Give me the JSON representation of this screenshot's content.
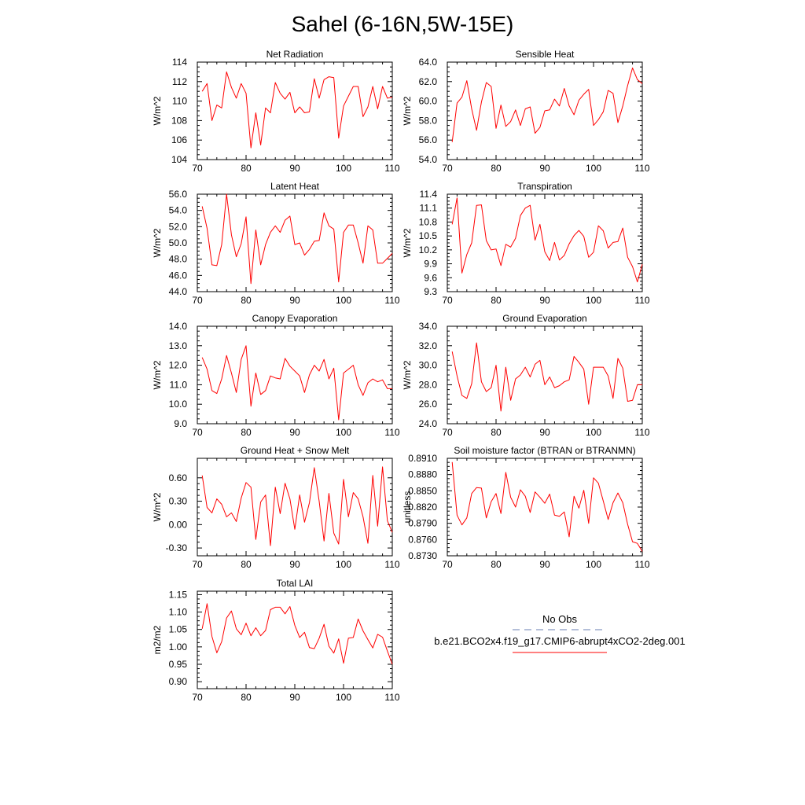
{
  "title": "Sahel (6-16N,5W-15E)",
  "colors": {
    "series": "#ff0000",
    "obs": "#6a7fb3",
    "axis": "#000000"
  },
  "x_axis": {
    "range": [
      70,
      110
    ],
    "major_ticks": [
      70,
      80,
      90,
      100,
      110
    ],
    "labels": [
      "70",
      "80",
      "90",
      "100",
      "110"
    ]
  },
  "legend": {
    "entries": [
      {
        "label": "No Obs",
        "line_color": "#6a7fb3",
        "line_style": "dashed"
      },
      {
        "label": "b.e21.BCO2x4.f19_g17.CMIP6-abrupt4xCO2-2deg.001",
        "line_color": "#ff0000",
        "line_style": "solid"
      }
    ]
  },
  "chart_data": [
    {
      "type": "line",
      "title": "Net Radiation",
      "ylabel": "W/m^2",
      "ylim": [
        104,
        114
      ],
      "yticks": [
        104,
        106,
        108,
        110,
        112,
        114
      ],
      "ytick_labels": [
        "104",
        "106",
        "108",
        "110",
        "112",
        "114"
      ],
      "x_start": 71,
      "values": [
        111.0,
        111.8,
        108.0,
        109.6,
        109.3,
        113.0,
        111.4,
        110.3,
        111.8,
        110.8,
        105.2,
        108.8,
        105.5,
        109.3,
        108.8,
        111.9,
        110.8,
        110.2,
        110.9,
        108.8,
        109.4,
        108.8,
        108.9,
        112.3,
        110.3,
        112.2,
        112.5,
        112.4,
        106.2,
        109.5,
        110.5,
        111.5,
        111.5,
        108.4,
        109.4,
        111.5,
        109.2,
        111.5,
        110.3,
        110.4
      ]
    },
    {
      "type": "line",
      "title": "Sensible Heat",
      "ylabel": "W/m^2",
      "ylim": [
        54,
        64
      ],
      "yticks": [
        54,
        56,
        58,
        60,
        62,
        64
      ],
      "ytick_labels": [
        "54.0",
        "56.0",
        "58.0",
        "60.0",
        "62.0",
        "64.0"
      ],
      "x_start": 71,
      "values": [
        55.8,
        59.8,
        60.4,
        62.1,
        59.2,
        57.0,
        59.9,
        61.9,
        61.5,
        57.2,
        59.6,
        57.4,
        57.9,
        59.1,
        57.5,
        59.2,
        59.4,
        56.7,
        57.3,
        59.0,
        59.1,
        60.2,
        59.5,
        61.3,
        59.5,
        58.6,
        60.1,
        60.7,
        61.2,
        57.5,
        58.1,
        58.9,
        61.1,
        60.8,
        57.8,
        59.5,
        61.6,
        63.4,
        62.2,
        61.8
      ]
    },
    {
      "type": "line",
      "title": "Latent Heat",
      "ylabel": "W/m^2",
      "ylim": [
        44,
        56
      ],
      "yticks": [
        44,
        46,
        48,
        50,
        52,
        54,
        56
      ],
      "ytick_labels": [
        "44.0",
        "46.0",
        "48.0",
        "50.0",
        "52.0",
        "54.0",
        "56.0"
      ],
      "x_start": 71,
      "values": [
        54.5,
        51.8,
        47.3,
        47.2,
        49.8,
        56.0,
        51.0,
        48.3,
        49.9,
        53.2,
        45.0,
        51.6,
        47.3,
        49.8,
        51.3,
        52.1,
        51.3,
        52.8,
        53.3,
        49.8,
        50.0,
        48.5,
        49.2,
        50.2,
        50.3,
        53.7,
        52.1,
        51.7,
        45.2,
        51.3,
        52.2,
        52.2,
        50.0,
        47.5,
        52.1,
        51.6,
        47.5,
        47.5,
        48.1,
        48.7
      ]
    },
    {
      "type": "line",
      "title": "Transpiration",
      "ylabel": "W/m^2",
      "ylim": [
        9.3,
        11.4
      ],
      "yticks": [
        9.3,
        9.6,
        9.9,
        10.2,
        10.5,
        10.8,
        11.1,
        11.4
      ],
      "ytick_labels": [
        "9.3",
        "9.6",
        "9.9",
        "10.2",
        "10.5",
        "10.8",
        "11.1",
        "11.4"
      ],
      "x_start": 71,
      "values": [
        10.75,
        11.32,
        9.7,
        10.1,
        10.35,
        11.16,
        11.17,
        10.4,
        10.2,
        10.22,
        9.86,
        10.32,
        10.26,
        10.45,
        10.94,
        11.1,
        11.16,
        10.41,
        10.75,
        10.16,
        9.97,
        10.36,
        9.98,
        10.08,
        10.33,
        10.51,
        10.62,
        10.49,
        10.04,
        10.15,
        10.72,
        10.61,
        10.24,
        10.36,
        10.38,
        10.67,
        10.04,
        9.84,
        9.51,
        9.89
      ]
    },
    {
      "type": "line",
      "title": "Canopy Evaporation",
      "ylabel": "W/m^2",
      "ylim": [
        9,
        14
      ],
      "yticks": [
        9,
        10,
        11,
        12,
        13,
        14
      ],
      "ytick_labels": [
        "9.0",
        "10.0",
        "11.0",
        "12.0",
        "13.0",
        "14.0"
      ],
      "x_start": 71,
      "values": [
        12.4,
        11.8,
        10.7,
        10.55,
        11.3,
        12.5,
        11.6,
        10.6,
        12.3,
        13.0,
        9.9,
        11.6,
        10.5,
        10.7,
        11.45,
        11.35,
        11.3,
        12.35,
        11.95,
        11.7,
        11.45,
        10.6,
        11.5,
        12.0,
        11.7,
        12.3,
        11.3,
        11.85,
        9.2,
        11.6,
        11.8,
        12.0,
        11.0,
        10.45,
        11.1,
        11.3,
        11.15,
        11.25,
        10.8,
        10.8
      ]
    },
    {
      "type": "line",
      "title": "Ground Evaporation",
      "ylabel": "W/m^2",
      "ylim": [
        24,
        34
      ],
      "yticks": [
        24,
        26,
        28,
        30,
        32,
        34
      ],
      "ytick_labels": [
        "24.0",
        "26.0",
        "28.0",
        "30.0",
        "32.0",
        "34.0"
      ],
      "x_start": 71,
      "values": [
        31.4,
        28.9,
        26.9,
        26.6,
        28.1,
        32.3,
        28.3,
        27.3,
        27.7,
        30.0,
        25.3,
        29.8,
        26.4,
        28.6,
        29.0,
        29.8,
        28.8,
        30.1,
        30.5,
        28.0,
        28.8,
        27.7,
        27.9,
        28.3,
        28.5,
        30.9,
        30.3,
        29.6,
        26.0,
        29.8,
        29.8,
        29.8,
        28.9,
        26.6,
        30.7,
        29.7,
        26.3,
        26.4,
        28.0,
        28.0
      ]
    },
    {
      "type": "line",
      "title": "Ground Heat + Snow Melt",
      "ylabel": "W/m^2",
      "ylim": [
        -0.4,
        0.85
      ],
      "yticks": [
        -0.3,
        0.0,
        0.3,
        0.6
      ],
      "ytick_labels": [
        "-0.30",
        "0.00",
        "0.30",
        "0.60"
      ],
      "x_start": 71,
      "values": [
        0.63,
        0.22,
        0.15,
        0.33,
        0.26,
        0.1,
        0.15,
        0.04,
        0.34,
        0.54,
        0.48,
        -0.19,
        0.29,
        0.38,
        -0.27,
        0.48,
        0.14,
        0.53,
        0.33,
        -0.06,
        0.38,
        0.03,
        0.28,
        0.73,
        0.3,
        -0.21,
        0.4,
        -0.11,
        -0.25,
        0.58,
        0.1,
        0.41,
        0.33,
        0.1,
        -0.24,
        0.63,
        -0.02,
        0.74,
        0.05,
        -0.1
      ]
    },
    {
      "type": "line",
      "title": "Soil moisture factor (BTRAN or BTRANMN)",
      "ylabel": "unitless",
      "ylim": [
        0.873,
        0.891
      ],
      "yticks": [
        0.873,
        0.876,
        0.879,
        0.882,
        0.885,
        0.888,
        0.891
      ],
      "ytick_labels": [
        "0.8730",
        "0.8760",
        "0.8790",
        "0.8820",
        "0.8850",
        "0.8880",
        "0.8910"
      ],
      "x_start": 71,
      "values": [
        0.8903,
        0.8805,
        0.8787,
        0.88,
        0.8845,
        0.8856,
        0.8855,
        0.88,
        0.883,
        0.8845,
        0.8808,
        0.8884,
        0.8838,
        0.882,
        0.8852,
        0.884,
        0.881,
        0.8848,
        0.8838,
        0.8827,
        0.8844,
        0.8805,
        0.8803,
        0.8811,
        0.8765,
        0.884,
        0.8818,
        0.8851,
        0.879,
        0.8874,
        0.8864,
        0.8831,
        0.8797,
        0.8828,
        0.8846,
        0.8828,
        0.8788,
        0.8756,
        0.8753,
        0.8738
      ]
    },
    {
      "type": "line",
      "title": "Total LAI",
      "ylabel": "m2/m2",
      "ylim": [
        0.88,
        1.16
      ],
      "yticks": [
        0.9,
        0.95,
        1.0,
        1.05,
        1.1,
        1.15
      ],
      "ytick_labels": [
        "0.90",
        "0.95",
        "1.00",
        "1.05",
        "1.10",
        "1.15"
      ],
      "x_start": 71,
      "values": [
        1.052,
        1.124,
        1.03,
        0.983,
        1.015,
        1.083,
        1.103,
        1.052,
        1.035,
        1.068,
        1.032,
        1.055,
        1.032,
        1.047,
        1.107,
        1.114,
        1.114,
        1.095,
        1.116,
        1.062,
        1.027,
        1.042,
        0.998,
        0.995,
        1.025,
        1.065,
        1.002,
        0.982,
        1.023,
        0.953,
        1.025,
        1.027,
        1.08,
        1.046,
        1.021,
        0.997,
        1.036,
        1.028,
        0.988,
        0.95
      ]
    }
  ]
}
